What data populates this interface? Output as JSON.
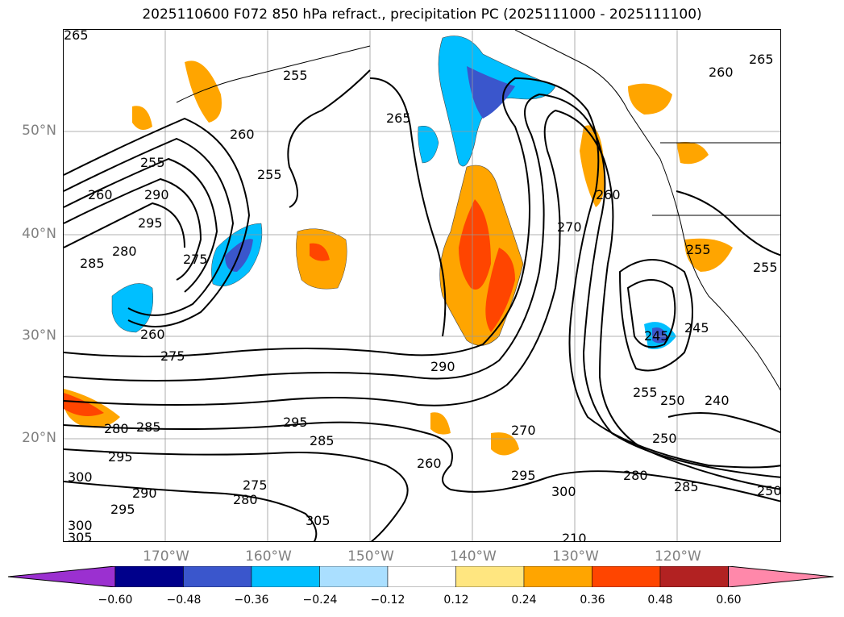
{
  "title": "2025110600 F072 850 hPa refract., precipitation PC (2025111000 - 2025111100)",
  "latitude_labels": [
    "50°N",
    "40°N",
    "30°N",
    "20°N"
  ],
  "longitude_labels": [
    "170°W",
    "160°W",
    "150°W",
    "140°W",
    "130°W",
    "120°W"
  ],
  "contour_labels": [
    "265",
    "255",
    "265",
    "260",
    "265",
    "260",
    "255",
    "255",
    "260",
    "290",
    "295",
    "285",
    "280",
    "275",
    "260",
    "275",
    "270",
    "260",
    "255",
    "245",
    "245",
    "250",
    "240",
    "255",
    "250",
    "295",
    "285",
    "280",
    "295",
    "300",
    "290",
    "295",
    "300",
    "305",
    "270",
    "260",
    "285",
    "275",
    "280",
    "305",
    "295",
    "300",
    "280",
    "285",
    "250",
    "210",
    "255",
    "290"
  ],
  "colorbar": {
    "ticks": [
      "−0.60",
      "−0.48",
      "−0.36",
      "−0.24",
      "−0.12",
      "0.12",
      "0.24",
      "0.36",
      "0.48",
      "0.60"
    ],
    "colors": [
      "#9b30d0",
      "#00008b",
      "#3a56cc",
      "#00bfff",
      "#aadfff",
      "#ffffff",
      "#ffe680",
      "#ffa500",
      "#ff4500",
      "#b22222",
      "#ff88aa"
    ]
  }
}
